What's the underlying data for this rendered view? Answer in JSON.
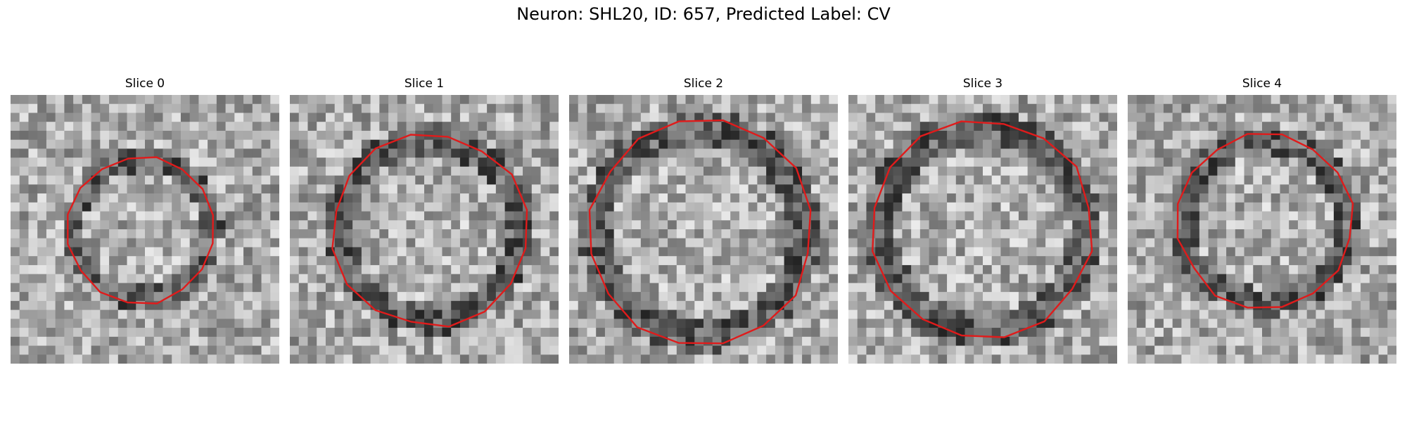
{
  "figure": {
    "title": "Neuron: SHL20, ID: 657, Predicted Label: CV",
    "contour_color": "#e01b1b",
    "colormap": "grayscale"
  },
  "slices": [
    {
      "title": "Slice 0",
      "contour_diameter": 0.55,
      "dark_ring": true
    },
    {
      "title": "Slice 1",
      "contour_diameter": 0.72,
      "dark_ring": true
    },
    {
      "title": "Slice 2",
      "contour_diameter": 0.83,
      "dark_ring": true
    },
    {
      "title": "Slice 3",
      "contour_diameter": 0.82,
      "dark_ring": true
    },
    {
      "title": "Slice 4",
      "contour_diameter": 0.65,
      "dark_ring": true
    }
  ]
}
